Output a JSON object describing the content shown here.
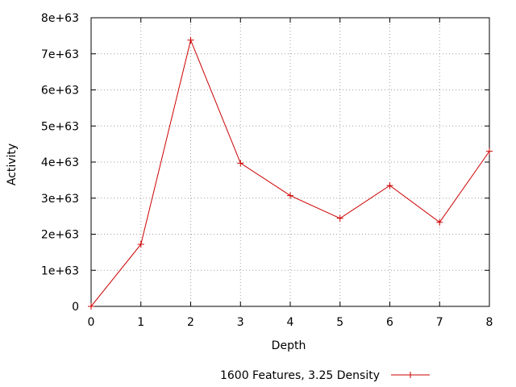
{
  "chart_data": {
    "type": "line",
    "title": "",
    "xlabel": "Depth",
    "ylabel": "Activity",
    "xlim": [
      0,
      8
    ],
    "ylim": [
      0,
      8e+63
    ],
    "x_ticks": [
      "0",
      "1",
      "2",
      "3",
      "4",
      "5",
      "6",
      "7",
      "8"
    ],
    "y_ticks": [
      "0",
      "1e+63",
      "2e+63",
      "3e+63",
      "4e+63",
      "5e+63",
      "6e+63",
      "7e+63",
      "8e+63"
    ],
    "grid": true,
    "legend_position": "bottom-center",
    "series": [
      {
        "name": "1600 Features, 3.25 Density",
        "color": "#cc0000",
        "marker": "plus",
        "x": [
          0,
          1,
          2,
          3,
          4,
          5,
          6,
          7,
          8
        ],
        "y": [
          0,
          1.72e+63,
          7.38e+63,
          3.97e+63,
          3.07e+63,
          2.44e+63,
          3.35e+63,
          2.33e+63,
          4.3e+63
        ]
      }
    ]
  }
}
